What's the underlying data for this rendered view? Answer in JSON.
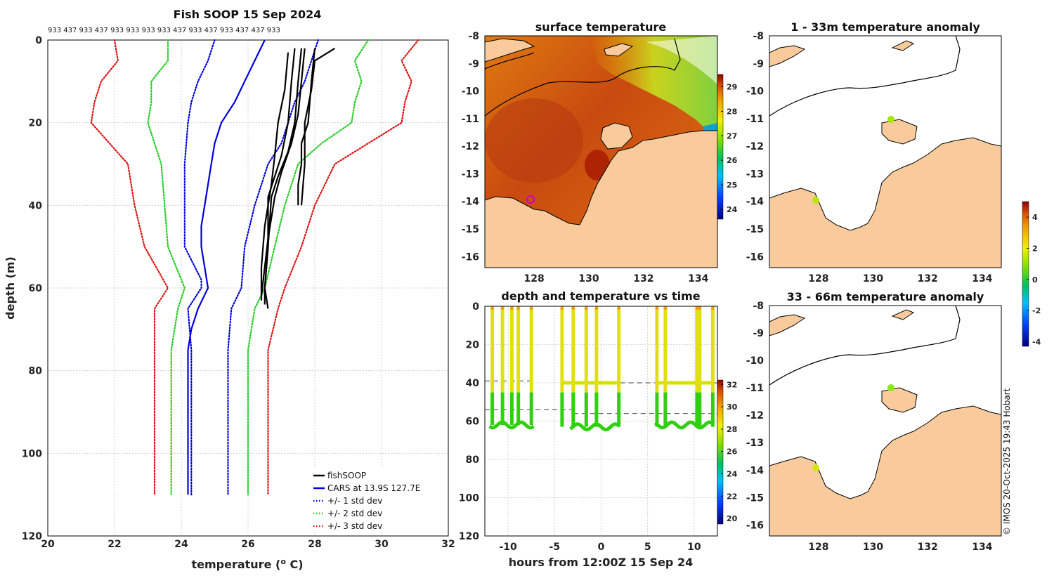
{
  "chart_data": [
    {
      "id": "profile",
      "type": "line",
      "title": "Fish SOOP 15 Sep 2024",
      "counts": "933 437 933 437 933 933 933 933 437 933 437 933 437 437 933",
      "xlabel": "temperature",
      "xlabel_unit": "(",
      "xlabel_sup": "o",
      "xlabel_unit_end": "C)",
      "ylabel": "depth (m)",
      "xlim": [
        20,
        32
      ],
      "ylim": [
        0,
        120
      ],
      "y_reversed": true,
      "xticks": [
        20,
        22,
        24,
        26,
        28,
        30,
        32
      ],
      "yticks": [
        0,
        20,
        40,
        60,
        80,
        100,
        120
      ],
      "legend": [
        {
          "label": "fishSOOP",
          "color": "#000000",
          "style": "solid"
        },
        {
          "label": "CARS at 13.9S 127.7E",
          "color": "#0000dd",
          "style": "solid"
        },
        {
          "label": "+/- 1 std dev",
          "color": "#0000dd",
          "style": "dotted"
        },
        {
          "label": "+/- 2 std dev",
          "color": "#22cc22",
          "style": "dotted"
        },
        {
          "label": "+/- 3 std dev",
          "color": "#dd1111",
          "style": "dotted"
        }
      ],
      "series": [
        {
          "name": "CARS mean",
          "color": "#0000dd",
          "style": "solid",
          "points": [
            [
              26.5,
              0
            ],
            [
              26.2,
              5
            ],
            [
              25.9,
              10
            ],
            [
              25.6,
              15
            ],
            [
              25.2,
              20
            ],
            [
              25.0,
              25
            ],
            [
              24.9,
              30
            ],
            [
              24.8,
              35
            ],
            [
              24.7,
              40
            ],
            [
              24.6,
              45
            ],
            [
              24.6,
              50
            ],
            [
              24.7,
              55
            ],
            [
              24.8,
              60
            ],
            [
              24.5,
              65
            ],
            [
              24.3,
              70
            ],
            [
              24.2,
              75
            ],
            [
              24.2,
              80
            ],
            [
              24.2,
              90
            ],
            [
              24.2,
              100
            ],
            [
              24.2,
              110
            ]
          ]
        },
        {
          "name": "-1 std",
          "color": "#0000dd",
          "style": "dotted",
          "points": [
            [
              25.0,
              0
            ],
            [
              24.8,
              5
            ],
            [
              24.5,
              10
            ],
            [
              24.3,
              15
            ],
            [
              24.2,
              20
            ],
            [
              24.1,
              30
            ],
            [
              24.1,
              40
            ],
            [
              24.1,
              50
            ],
            [
              24.6,
              58
            ],
            [
              24.6,
              60
            ],
            [
              24.2,
              65
            ],
            [
              24.3,
              75
            ],
            [
              24.3,
              110
            ]
          ]
        },
        {
          "name": "+1 std",
          "color": "#0000dd",
          "style": "dotted",
          "points": [
            [
              28.1,
              0
            ],
            [
              27.9,
              5
            ],
            [
              27.7,
              10
            ],
            [
              27.4,
              15
            ],
            [
              27.2,
              20
            ],
            [
              27.0,
              25
            ],
            [
              26.6,
              30
            ],
            [
              26.2,
              40
            ],
            [
              25.9,
              50
            ],
            [
              25.8,
              60
            ],
            [
              25.5,
              65
            ],
            [
              25.4,
              75
            ],
            [
              25.4,
              110
            ]
          ]
        },
        {
          "name": "-2 std",
          "color": "#22cc22",
          "style": "dotted",
          "points": [
            [
              23.6,
              0
            ],
            [
              23.6,
              5
            ],
            [
              23.1,
              10
            ],
            [
              23.1,
              15
            ],
            [
              23.0,
              20
            ],
            [
              23.4,
              30
            ],
            [
              23.5,
              40
            ],
            [
              23.6,
              50
            ],
            [
              24.1,
              60
            ],
            [
              23.9,
              65
            ],
            [
              23.7,
              75
            ],
            [
              23.7,
              110
            ]
          ]
        },
        {
          "name": "+2 std",
          "color": "#22cc22",
          "style": "dotted",
          "points": [
            [
              29.6,
              0
            ],
            [
              29.2,
              5
            ],
            [
              29.4,
              10
            ],
            [
              29.2,
              15
            ],
            [
              29.1,
              20
            ],
            [
              28.2,
              25
            ],
            [
              27.5,
              30
            ],
            [
              27.1,
              40
            ],
            [
              26.8,
              50
            ],
            [
              26.5,
              60
            ],
            [
              26.2,
              65
            ],
            [
              26.0,
              75
            ],
            [
              26.0,
              110
            ]
          ]
        },
        {
          "name": "-3 std",
          "color": "#dd1111",
          "style": "dotted",
          "points": [
            [
              22.0,
              0
            ],
            [
              22.1,
              5
            ],
            [
              21.6,
              10
            ],
            [
              21.4,
              15
            ],
            [
              21.3,
              20
            ],
            [
              22.4,
              30
            ],
            [
              22.6,
              40
            ],
            [
              22.9,
              50
            ],
            [
              23.6,
              60
            ],
            [
              23.2,
              65
            ],
            [
              23.2,
              75
            ],
            [
              23.2,
              110
            ]
          ]
        },
        {
          "name": "+3 std",
          "color": "#dd1111",
          "style": "dotted",
          "points": [
            [
              31.1,
              0
            ],
            [
              30.6,
              5
            ],
            [
              30.9,
              10
            ],
            [
              30.7,
              15
            ],
            [
              30.6,
              20
            ],
            [
              29.6,
              25
            ],
            [
              28.6,
              30
            ],
            [
              28.0,
              40
            ],
            [
              27.6,
              50
            ],
            [
              27.1,
              60
            ],
            [
              26.9,
              65
            ],
            [
              26.6,
              75
            ],
            [
              26.6,
              110
            ]
          ]
        },
        {
          "name": "fishSOOP a",
          "color": "#000000",
          "style": "solid",
          "points": [
            [
              27.4,
              2
            ],
            [
              27.3,
              10
            ],
            [
              27.2,
              20
            ],
            [
              27.0,
              28
            ],
            [
              26.8,
              33
            ],
            [
              26.6,
              38
            ],
            [
              26.6,
              50
            ],
            [
              26.5,
              60
            ],
            [
              26.5,
              64
            ]
          ]
        },
        {
          "name": "fishSOOP b",
          "color": "#000000",
          "style": "solid",
          "points": [
            [
              27.6,
              2
            ],
            [
              27.5,
              10
            ],
            [
              27.4,
              20
            ],
            [
              27.2,
              27
            ],
            [
              26.9,
              33
            ],
            [
              26.7,
              38
            ],
            [
              26.6,
              50
            ],
            [
              26.5,
              60
            ],
            [
              26.6,
              65
            ]
          ]
        },
        {
          "name": "fishSOOP c",
          "color": "#000000",
          "style": "solid",
          "points": [
            [
              28.0,
              2
            ],
            [
              27.9,
              10
            ],
            [
              27.8,
              20
            ],
            [
              27.6,
              25
            ],
            [
              27.6,
              30
            ],
            [
              27.5,
              35
            ],
            [
              27.5,
              40
            ]
          ]
        },
        {
          "name": "fishSOOP d",
          "color": "#000000",
          "style": "solid",
          "points": [
            [
              28.6,
              2
            ],
            [
              28.0,
              5
            ],
            [
              27.9,
              12
            ],
            [
              27.7,
              20
            ],
            [
              27.7,
              30
            ],
            [
              27.6,
              40
            ]
          ]
        },
        {
          "name": "fishSOOP e",
          "color": "#000000",
          "style": "solid",
          "points": [
            [
              27.2,
              3
            ],
            [
              27.1,
              12
            ],
            [
              26.9,
              20
            ],
            [
              26.8,
              28
            ],
            [
              26.7,
              35
            ],
            [
              26.5,
              45
            ],
            [
              26.4,
              55
            ],
            [
              26.4,
              63
            ]
          ]
        },
        {
          "name": "fishSOOP f",
          "color": "#000000",
          "style": "solid",
          "points": [
            [
              27.7,
              2
            ],
            [
              27.6,
              10
            ],
            [
              27.5,
              18
            ],
            [
              27.3,
              25
            ],
            [
              27.0,
              32
            ],
            [
              26.8,
              38
            ],
            [
              26.6,
              48
            ],
            [
              26.4,
              62
            ]
          ]
        }
      ]
    },
    {
      "id": "sst_map",
      "type": "heatmap",
      "title": "surface temperature",
      "xticks": [
        "128",
        "130",
        "132",
        "134"
      ],
      "yticks": [
        "-8",
        "-9",
        "-10",
        "-11",
        "-12",
        "-13",
        "-14",
        "-15",
        "-16"
      ],
      "xlim": [
        126.2,
        134.7
      ],
      "ylim": [
        -16.4,
        -8
      ],
      "colorbar": {
        "ticks": [
          "29",
          "28",
          "27",
          "26",
          "25",
          "24"
        ],
        "range": [
          23.6,
          29.5
        ]
      },
      "markers": [
        {
          "lon": 127.7,
          "lat": -13.9,
          "color": "#d000d0"
        }
      ]
    },
    {
      "id": "anom_1_33",
      "type": "heatmap",
      "title": "1 - 33m temperature anomaly",
      "xticks": [
        "128",
        "130",
        "132",
        "134"
      ],
      "yticks": [
        "-8",
        "-9",
        "-10",
        "-11",
        "-12",
        "-13",
        "-14",
        "-15",
        "-16"
      ],
      "xlim": [
        126.2,
        134.7
      ],
      "ylim": [
        -16.4,
        -8
      ],
      "markers": [
        {
          "lon": 127.7,
          "lat": -13.9,
          "color": "#b8e600"
        },
        {
          "lon": 130.5,
          "lat": -11.05,
          "color": "#a6e60f"
        }
      ]
    },
    {
      "id": "anom_33_66",
      "type": "heatmap",
      "title": "33 - 66m temperature anomaly",
      "xticks": [
        "128",
        "130",
        "132",
        "134"
      ],
      "yticks": [
        "-8",
        "-9",
        "-10",
        "-11",
        "-12",
        "-13",
        "-14",
        "-15",
        "-16"
      ],
      "xlim": [
        126.2,
        134.7
      ],
      "ylim": [
        -16.4,
        -8
      ],
      "colorbar": {
        "ticks": [
          "4",
          "2",
          "0",
          "-2",
          "-4"
        ],
        "range": [
          -4.3,
          5.0
        ]
      },
      "markers": [
        {
          "lon": 127.7,
          "lat": -13.9,
          "color": "#d4e60f"
        },
        {
          "lon": 130.5,
          "lat": -11.0,
          "color": "#8ce61a"
        }
      ]
    },
    {
      "id": "depth_time",
      "type": "line",
      "title": "depth and temperature vs time",
      "xlabel": "hours from 12:00Z 15 Sep 24",
      "xlim": [
        -12.5,
        12.5
      ],
      "ylim": [
        0,
        120
      ],
      "y_reversed": true,
      "xticks": [
        -10,
        -5,
        0,
        5,
        10
      ],
      "yticks": [
        0,
        20,
        40,
        60,
        80,
        100,
        120
      ],
      "colorbar": {
        "ticks": [
          "32",
          "30",
          "28",
          "26",
          "24",
          "22",
          "20"
        ],
        "range": [
          19.5,
          32.4
        ]
      },
      "dive_times": [
        -11.7,
        -10.6,
        -9.6,
        -8.9,
        -7.5,
        -4.2,
        -3.0,
        -1.6,
        -0.5,
        1.9,
        6.0,
        6.9,
        10.3,
        10.6,
        12.0
      ],
      "bottom_segments": [
        {
          "x": [
            -12.0,
            -7.2
          ],
          "depth": 62
        },
        {
          "x": [
            -4.3,
            2.0
          ],
          "depth": 40
        },
        {
          "x": [
            -3.3,
            2.0
          ],
          "depth": 63
        },
        {
          "x": [
            5.8,
            12.2
          ],
          "depth": 40
        },
        {
          "x": [
            5.8,
            12.2
          ],
          "depth": 62
        }
      ],
      "dashed_lines": [
        {
          "x": [
            -12.5,
            -7.2
          ],
          "depth": 39
        },
        {
          "x": [
            -12.5,
            -3.0
          ],
          "depth": 54
        },
        {
          "x": [
            -3.0,
            12.5
          ],
          "depth": 56
        },
        {
          "x": [
            -4.3,
            12.5
          ],
          "depth": 40
        }
      ]
    }
  ],
  "credit": "© IMOS 20-Oct-2025 19:43 Hobart",
  "colors": {
    "land": "#f9cb9c",
    "ocean_bg": "#ffffff",
    "cars": "#0000dd",
    "std2": "#22cc22",
    "std3": "#dd1111"
  }
}
